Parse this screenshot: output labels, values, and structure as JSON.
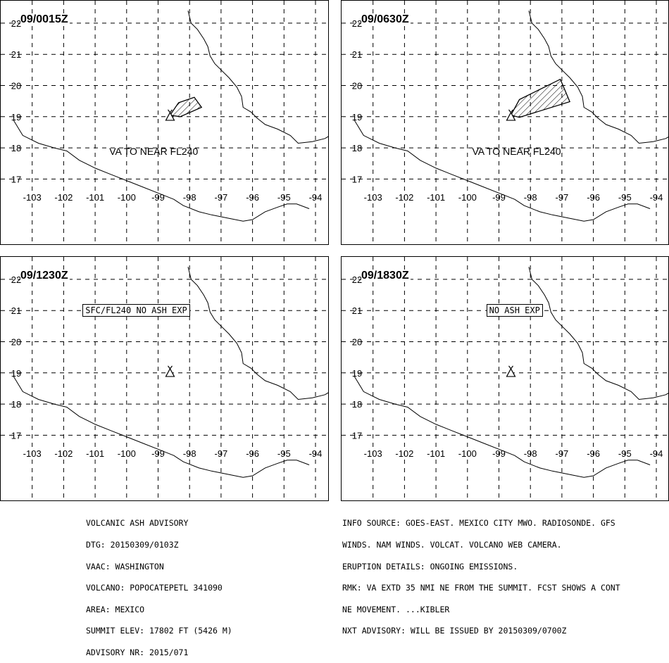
{
  "map": {
    "lon_ticks": [
      -103,
      -102,
      -101,
      -100,
      -99,
      -98,
      -97,
      -96,
      -95,
      -94
    ],
    "lat_ticks": [
      22,
      21,
      20,
      19,
      18,
      17
    ],
    "lon_range": [
      -103.6,
      -93.4
    ],
    "lat_range": [
      16.2,
      22.6
    ],
    "volcano": {
      "lon": -98.62,
      "lat": 19.02
    }
  },
  "panels": [
    {
      "title": "09/0015Z",
      "label": "VA TO NEAR FL240",
      "box_text": "",
      "ash_polygon": [
        [
          -98.62,
          19.05
        ],
        [
          -98.35,
          19.45
        ],
        [
          -97.85,
          19.62
        ],
        [
          -97.62,
          19.3
        ],
        [
          -98.3,
          19.0
        ]
      ]
    },
    {
      "title": "09/0630Z",
      "label": "VA TO NEAR FL240",
      "box_text": "",
      "ash_polygon": [
        [
          -98.62,
          19.05
        ],
        [
          -98.35,
          19.55
        ],
        [
          -97.05,
          20.2
        ],
        [
          -96.75,
          19.48
        ],
        [
          -98.35,
          18.98
        ]
      ]
    },
    {
      "title": "09/1230Z",
      "label": "",
      "box_text": "SFC/FL240 NO ASH EXP",
      "ash_polygon": []
    },
    {
      "title": "09/1830Z",
      "label": "",
      "box_text": "NO ASH EXP",
      "ash_polygon": []
    }
  ],
  "advisory_left": [
    "VOLCANIC ASH ADVISORY",
    "DTG: 20150309/0103Z",
    "VAAC: WASHINGTON",
    "VOLCANO: POPOCATEPETL 341090",
    "AREA: MEXICO",
    "SUMMIT ELEV: 17802 FT (5426 M)",
    "ADVISORY NR: 2015/071"
  ],
  "advisory_right": [
    "INFO SOURCE: GOES-EAST. MEXICO CITY MWO. RADIOSONDE. GFS",
    "WINDS. NAM WINDS. VOLCAT. VOLCANO WEB CAMERA.",
    "ERUPTION DETAILS: ONGOING EMISSIONS.",
    "RMK: VA EXTD 35 NMI NE FROM THE SUMMIT. FCST SHOWS A CONT",
    "NE MOVEMENT. ...KIBLER",
    "NXT ADVISORY: WILL BE ISSUED BY 20150309/0700Z"
  ],
  "coast_gulf": [
    [
      -98.05,
      22.4
    ],
    [
      -97.95,
      22.0
    ],
    [
      -97.75,
      21.8
    ],
    [
      -97.55,
      21.5
    ],
    [
      -97.42,
      21.25
    ],
    [
      -97.35,
      20.95
    ],
    [
      -97.2,
      20.7
    ],
    [
      -97.0,
      20.5
    ],
    [
      -96.75,
      20.25
    ],
    [
      -96.5,
      19.95
    ],
    [
      -96.35,
      19.65
    ],
    [
      -96.3,
      19.3
    ],
    [
      -96.05,
      19.15
    ],
    [
      -95.85,
      18.95
    ],
    [
      -95.6,
      18.75
    ],
    [
      -95.2,
      18.6
    ],
    [
      -94.8,
      18.4
    ],
    [
      -94.55,
      18.15
    ],
    [
      -94.1,
      18.2
    ],
    [
      -93.7,
      18.3
    ],
    [
      -93.45,
      18.45
    ]
  ],
  "coast_pacific": [
    [
      -103.6,
      18.9
    ],
    [
      -103.3,
      18.4
    ],
    [
      -102.8,
      18.15
    ],
    [
      -102.3,
      18.0
    ],
    [
      -101.9,
      17.9
    ],
    [
      -101.5,
      17.6
    ],
    [
      -101.0,
      17.35
    ],
    [
      -100.5,
      17.15
    ],
    [
      -100.0,
      16.95
    ],
    [
      -99.5,
      16.75
    ],
    [
      -99.0,
      16.55
    ],
    [
      -98.5,
      16.35
    ],
    [
      -98.2,
      16.15
    ],
    [
      -97.7,
      15.95
    ],
    [
      -97.3,
      15.85
    ],
    [
      -96.8,
      15.75
    ],
    [
      -96.3,
      15.65
    ],
    [
      -96.0,
      15.7
    ],
    [
      -95.6,
      15.95
    ],
    [
      -95.2,
      16.1
    ],
    [
      -94.9,
      16.2
    ],
    [
      -94.6,
      16.2
    ],
    [
      -94.2,
      16.05
    ]
  ]
}
